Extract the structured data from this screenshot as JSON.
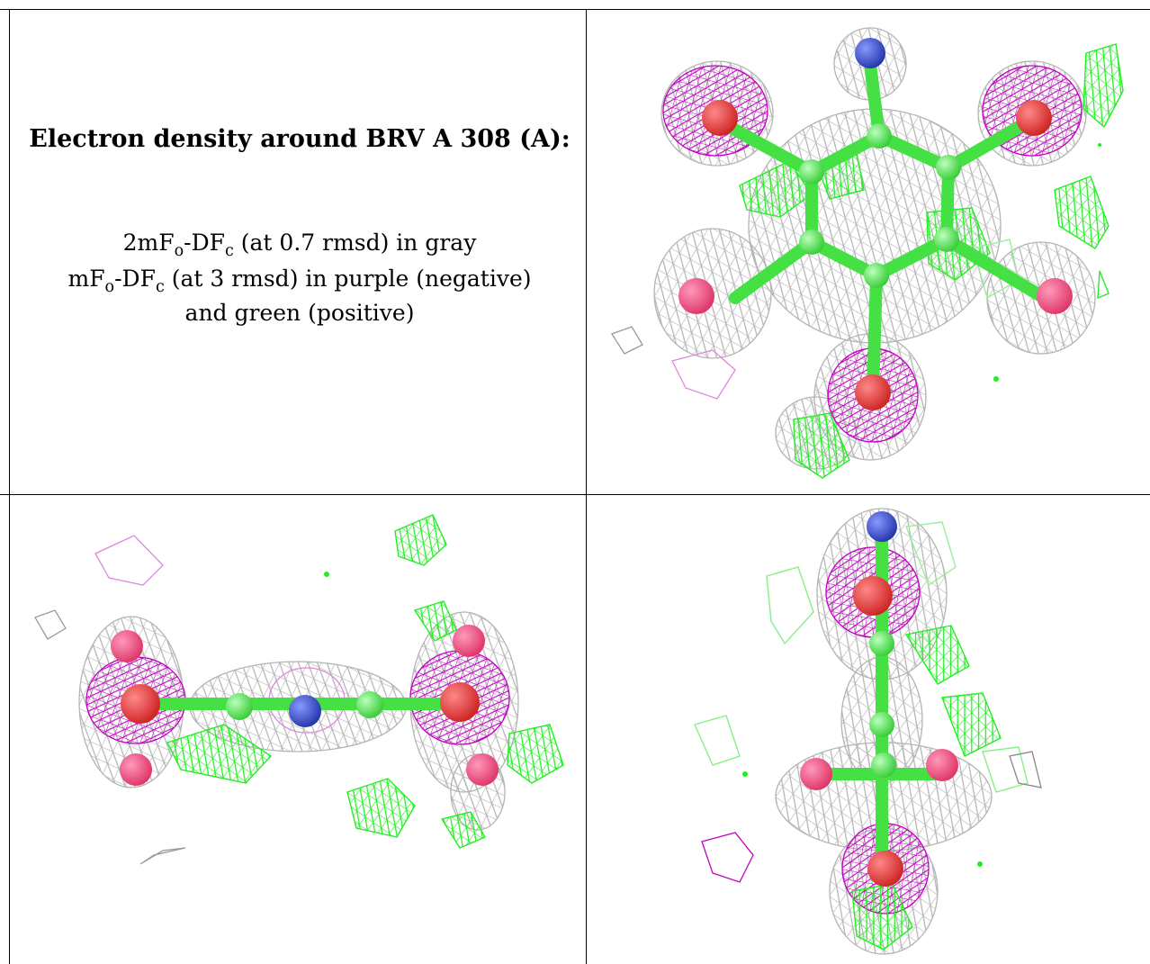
{
  "caption": {
    "title": "Electron density around BRV A 308 (A):",
    "line1_pre": "2mF",
    "line1_sub1": "o",
    "line1_mid": "-DF",
    "line1_sub2": "c",
    "line1_post": " (at 0.7 rmsd) in gray",
    "line2_pre": "mF",
    "line2_sub1": "o",
    "line2_mid": "-DF",
    "line2_sub2": "c",
    "line2_post": " (at 3 rmsd) in purple (negative)",
    "line3": "and green (positive)"
  },
  "colors": {
    "gray_mesh": "#b4b4b4",
    "purple_mesh": "#c000c0",
    "green_mesh": "#22ee22",
    "carbon": "#55ee55",
    "oxygen": "#ee3333",
    "nitrogen": "#3344cc"
  }
}
